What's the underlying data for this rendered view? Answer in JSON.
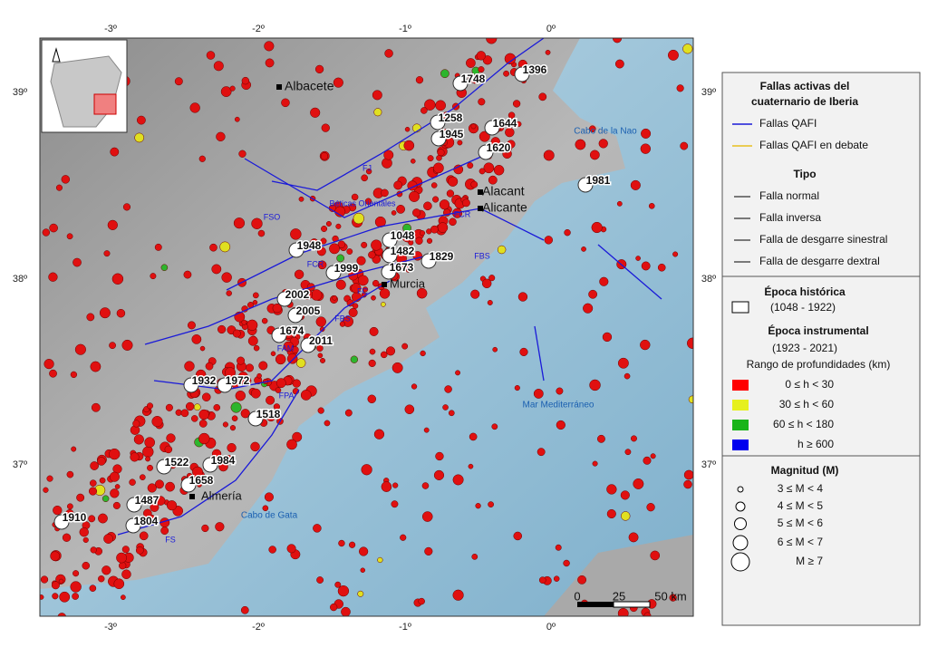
{
  "map": {
    "lon_ticks": [
      "-3º",
      "-2º",
      "-1º",
      "0º"
    ],
    "lat_ticks": [
      "39º",
      "38º",
      "37º"
    ],
    "cities": [
      "Albacete",
      "Alacant",
      "Alicante",
      "Murcia",
      "Almería"
    ],
    "places": [
      "Cabo de la Nao",
      "Mar Mediterráneo",
      "Cabo de Gata"
    ],
    "faults": [
      "FJ",
      "FSO",
      "Béticas Orientales",
      "FCR",
      "FCR",
      "FBS",
      "FC",
      "FBS",
      "FAM",
      "FPA",
      "FS"
    ],
    "events": [
      "1396",
      "1748",
      "1258",
      "1644",
      "1945",
      "1620",
      "1981",
      "1048",
      "1482",
      "1948",
      "1999",
      "1673",
      "1829",
      "2002",
      "2005",
      "1674",
      "2011",
      "1932",
      "1972",
      "1518",
      "1522",
      "1984",
      "1658",
      "1487",
      "1910",
      "1804"
    ],
    "scale": [
      "0",
      "25",
      "50 km"
    ]
  },
  "legend": {
    "title": "Fallas activas del cuaternario de Iberia",
    "fault_types": [
      "Fallas QAFI",
      "Fallas QAFI en debate"
    ],
    "tipo_title": "Tipo",
    "tipo": [
      "Falla normal",
      "Falla inversa",
      "Falla de desgarre sinestral",
      "Falla de desgarre dextral"
    ],
    "historic_title": "Época histórica",
    "historic_range": "(1048 - 1922)",
    "instrumental_title": "Época instrumental",
    "instrumental_range": "(1923 - 2021)",
    "depth_title": "Rango de profundidades (km)",
    "depths": [
      "0 ≤ h < 30",
      "30 ≤ h < 60",
      "60 ≤ h < 180",
      "h ≥ 600"
    ],
    "magnitude_title": "Magnitud (M)",
    "magnitudes": [
      "3 ≤ M < 4",
      "4 ≤ M < 5",
      "5 ≤ M < 6",
      "6 ≤ M < 7",
      "M ≥ 7"
    ]
  }
}
